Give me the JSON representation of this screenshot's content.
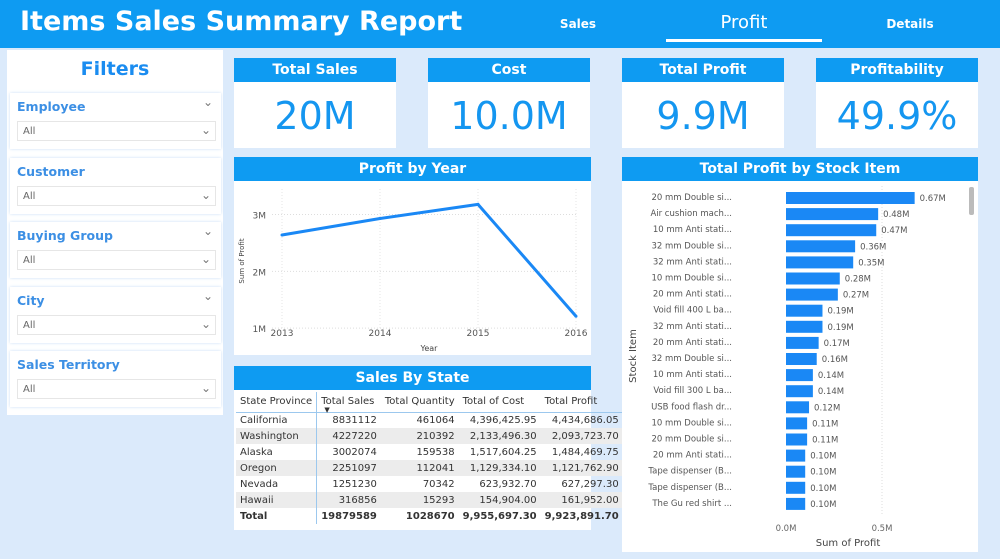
{
  "header": {
    "title": "Items Sales Summary Report",
    "nav": [
      {
        "label": "Sales",
        "active": false
      },
      {
        "label": "Profit",
        "active": true
      },
      {
        "label": "Details",
        "active": false
      }
    ]
  },
  "filters": {
    "title": "Filters",
    "slicers": [
      {
        "label": "Employee",
        "value": "All"
      },
      {
        "label": "Customer",
        "value": "All"
      },
      {
        "label": "Buying Group",
        "value": "All"
      },
      {
        "label": "City",
        "value": "All"
      },
      {
        "label": "Sales Territory",
        "value": "All"
      }
    ]
  },
  "kpis": [
    {
      "label": "Total Sales",
      "value": "20M"
    },
    {
      "label": "Cost",
      "value": "10.0M"
    },
    {
      "label": "Total Profit",
      "value": "9.9M"
    },
    {
      "label": "Profitability",
      "value": "49.9%"
    }
  ],
  "colors": {
    "accent": "#0e9bf2",
    "bar": "#1a88f5",
    "background": "#dbeafb"
  },
  "sales_by_state": {
    "title": "Sales By State",
    "columns": [
      "State Province",
      "Total Sales",
      "Total Quantity",
      "Total of Cost",
      "Total Profit"
    ],
    "sort_column": "Total Sales",
    "rows": [
      [
        "California",
        "8831112",
        "461064",
        "4,396,425.95",
        "4,434,686.05"
      ],
      [
        "Washington",
        "4227220",
        "210392",
        "2,133,496.30",
        "2,093,723.70"
      ],
      [
        "Alaska",
        "3002074",
        "159538",
        "1,517,604.25",
        "1,484,469.75"
      ],
      [
        "Oregon",
        "2251097",
        "112041",
        "1,129,334.10",
        "1,121,762.90"
      ],
      [
        "Nevada",
        "1251230",
        "70342",
        "623,932.70",
        "627,297.30"
      ],
      [
        "Hawaii",
        "316856",
        "15293",
        "154,904.00",
        "161,952.00"
      ]
    ],
    "total": [
      "Total",
      "19879589",
      "1028670",
      "9,955,697.30",
      "9,923,891.70"
    ]
  },
  "chart_data": [
    {
      "type": "line",
      "title": "Profit by Year",
      "xlabel": "Year",
      "ylabel": "Sum of Profit",
      "x": [
        2013,
        2014,
        2015,
        2016
      ],
      "values": [
        2640000,
        2930000,
        3180000,
        1210000
      ],
      "yticks": [
        "1M",
        "2M",
        "3M"
      ],
      "ylim": [
        950000,
        3450000
      ],
      "grid": true
    },
    {
      "type": "bar",
      "orientation": "horizontal",
      "title": "Total Profit by Stock Item",
      "xlabel": "Sum of Profit",
      "ylabel": "Stock Item",
      "xticks": [
        "0.0M",
        "0.5M"
      ],
      "xlim": [
        0,
        0.9
      ],
      "grid": true,
      "categories": [
        "20 mm Double si...",
        "Air cushion mach...",
        "10 mm Anti stati...",
        "32 mm Double si...",
        "32 mm Anti stati...",
        "10 mm Double si...",
        "20 mm Anti stati...",
        "Void fill 400 L ba...",
        "32 mm Anti stati...",
        "20 mm Anti stati...",
        "32 mm Double si...",
        "10 mm Anti stati...",
        "Void fill 300 L ba...",
        "USB food flash dr...",
        "10 mm Double si...",
        "20 mm Double si...",
        "20 mm Anti stati...",
        "Tape dispenser (B...",
        "Tape dispenser (B...",
        "The Gu red shirt ..."
      ],
      "values": [
        0.67,
        0.48,
        0.47,
        0.36,
        0.35,
        0.28,
        0.27,
        0.19,
        0.19,
        0.17,
        0.16,
        0.14,
        0.14,
        0.12,
        0.11,
        0.11,
        0.1,
        0.1,
        0.1,
        0.1
      ],
      "labels": [
        "0.67M",
        "0.48M",
        "0.47M",
        "0.36M",
        "0.35M",
        "0.28M",
        "0.27M",
        "0.19M",
        "0.19M",
        "0.17M",
        "0.16M",
        "0.14M",
        "0.14M",
        "0.12M",
        "0.11M",
        "0.11M",
        "0.10M",
        "0.10M",
        "0.10M",
        "0.10M"
      ]
    }
  ]
}
